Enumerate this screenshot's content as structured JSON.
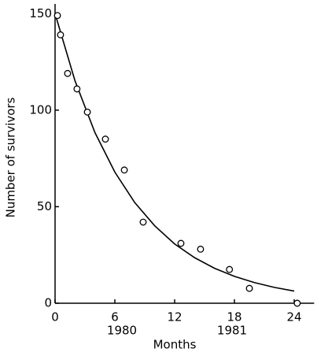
{
  "chart_data": {
    "type": "scatter",
    "xlabel": "Months",
    "ylabel": "Number of survivors",
    "annotations": [
      "1980",
      "1981"
    ],
    "xlim": [
      0,
      26
    ],
    "ylim": [
      0,
      155
    ],
    "xticks": [
      0,
      6,
      12,
      18,
      24
    ],
    "yticks": [
      0,
      50,
      100,
      150
    ],
    "color": "#000000",
    "points": {
      "x": [
        0.24,
        0.55,
        1.26,
        2.2,
        3.24,
        5.05,
        6.95,
        8.84,
        12.63,
        14.6,
        17.5,
        19.5,
        24.3
      ],
      "values": [
        149,
        139,
        119,
        111,
        99,
        85,
        69,
        42,
        31,
        28,
        17.5,
        7.7,
        0
      ]
    },
    "fit": {
      "x": [
        0,
        2,
        4,
        6,
        8,
        10,
        12,
        14,
        16,
        18,
        20,
        22,
        24
      ],
      "values": [
        150,
        115.2,
        88.4,
        67.9,
        52.1,
        40.1,
        30.7,
        23.6,
        18.1,
        13.9,
        10.7,
        8.2,
        6.3
      ]
    }
  }
}
